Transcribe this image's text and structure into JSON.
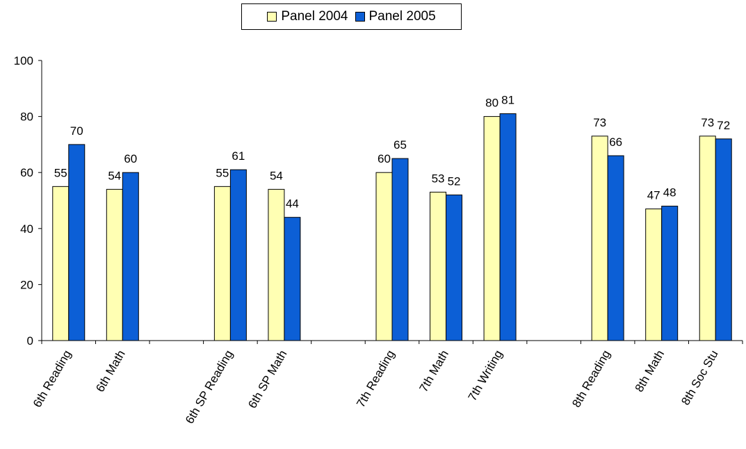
{
  "colors": {
    "panel_2004": "#FFFFB3",
    "panel_2005": "#0C5FD6",
    "axis": "#000000"
  },
  "legend": {
    "placement": "top-center",
    "items": [
      {
        "label": "Panel 2004",
        "color": "#FFFFB3"
      },
      {
        "label": "Panel 2005",
        "color": "#0C5FD6"
      }
    ]
  },
  "chart_data": {
    "type": "bar",
    "categories": [
      "6th Reading",
      "6th Math",
      "",
      "6th SP Reading",
      "6th SP Math",
      "",
      "7th Reading",
      "7th Math",
      "7th Writing",
      "",
      "8th Reading",
      "8th Math",
      "8th Soc Stu"
    ],
    "series": [
      {
        "name": "Panel 2004",
        "values": [
          55,
          54,
          null,
          55,
          54,
          null,
          60,
          53,
          80,
          null,
          73,
          47,
          73
        ]
      },
      {
        "name": "Panel 2005",
        "values": [
          70,
          60,
          null,
          61,
          44,
          null,
          65,
          52,
          81,
          null,
          66,
          48,
          72
        ]
      }
    ],
    "ylim": [
      0,
      100
    ],
    "yticks": [
      0,
      20,
      40,
      60,
      80,
      100
    ],
    "grid": false,
    "data_labels": true
  }
}
